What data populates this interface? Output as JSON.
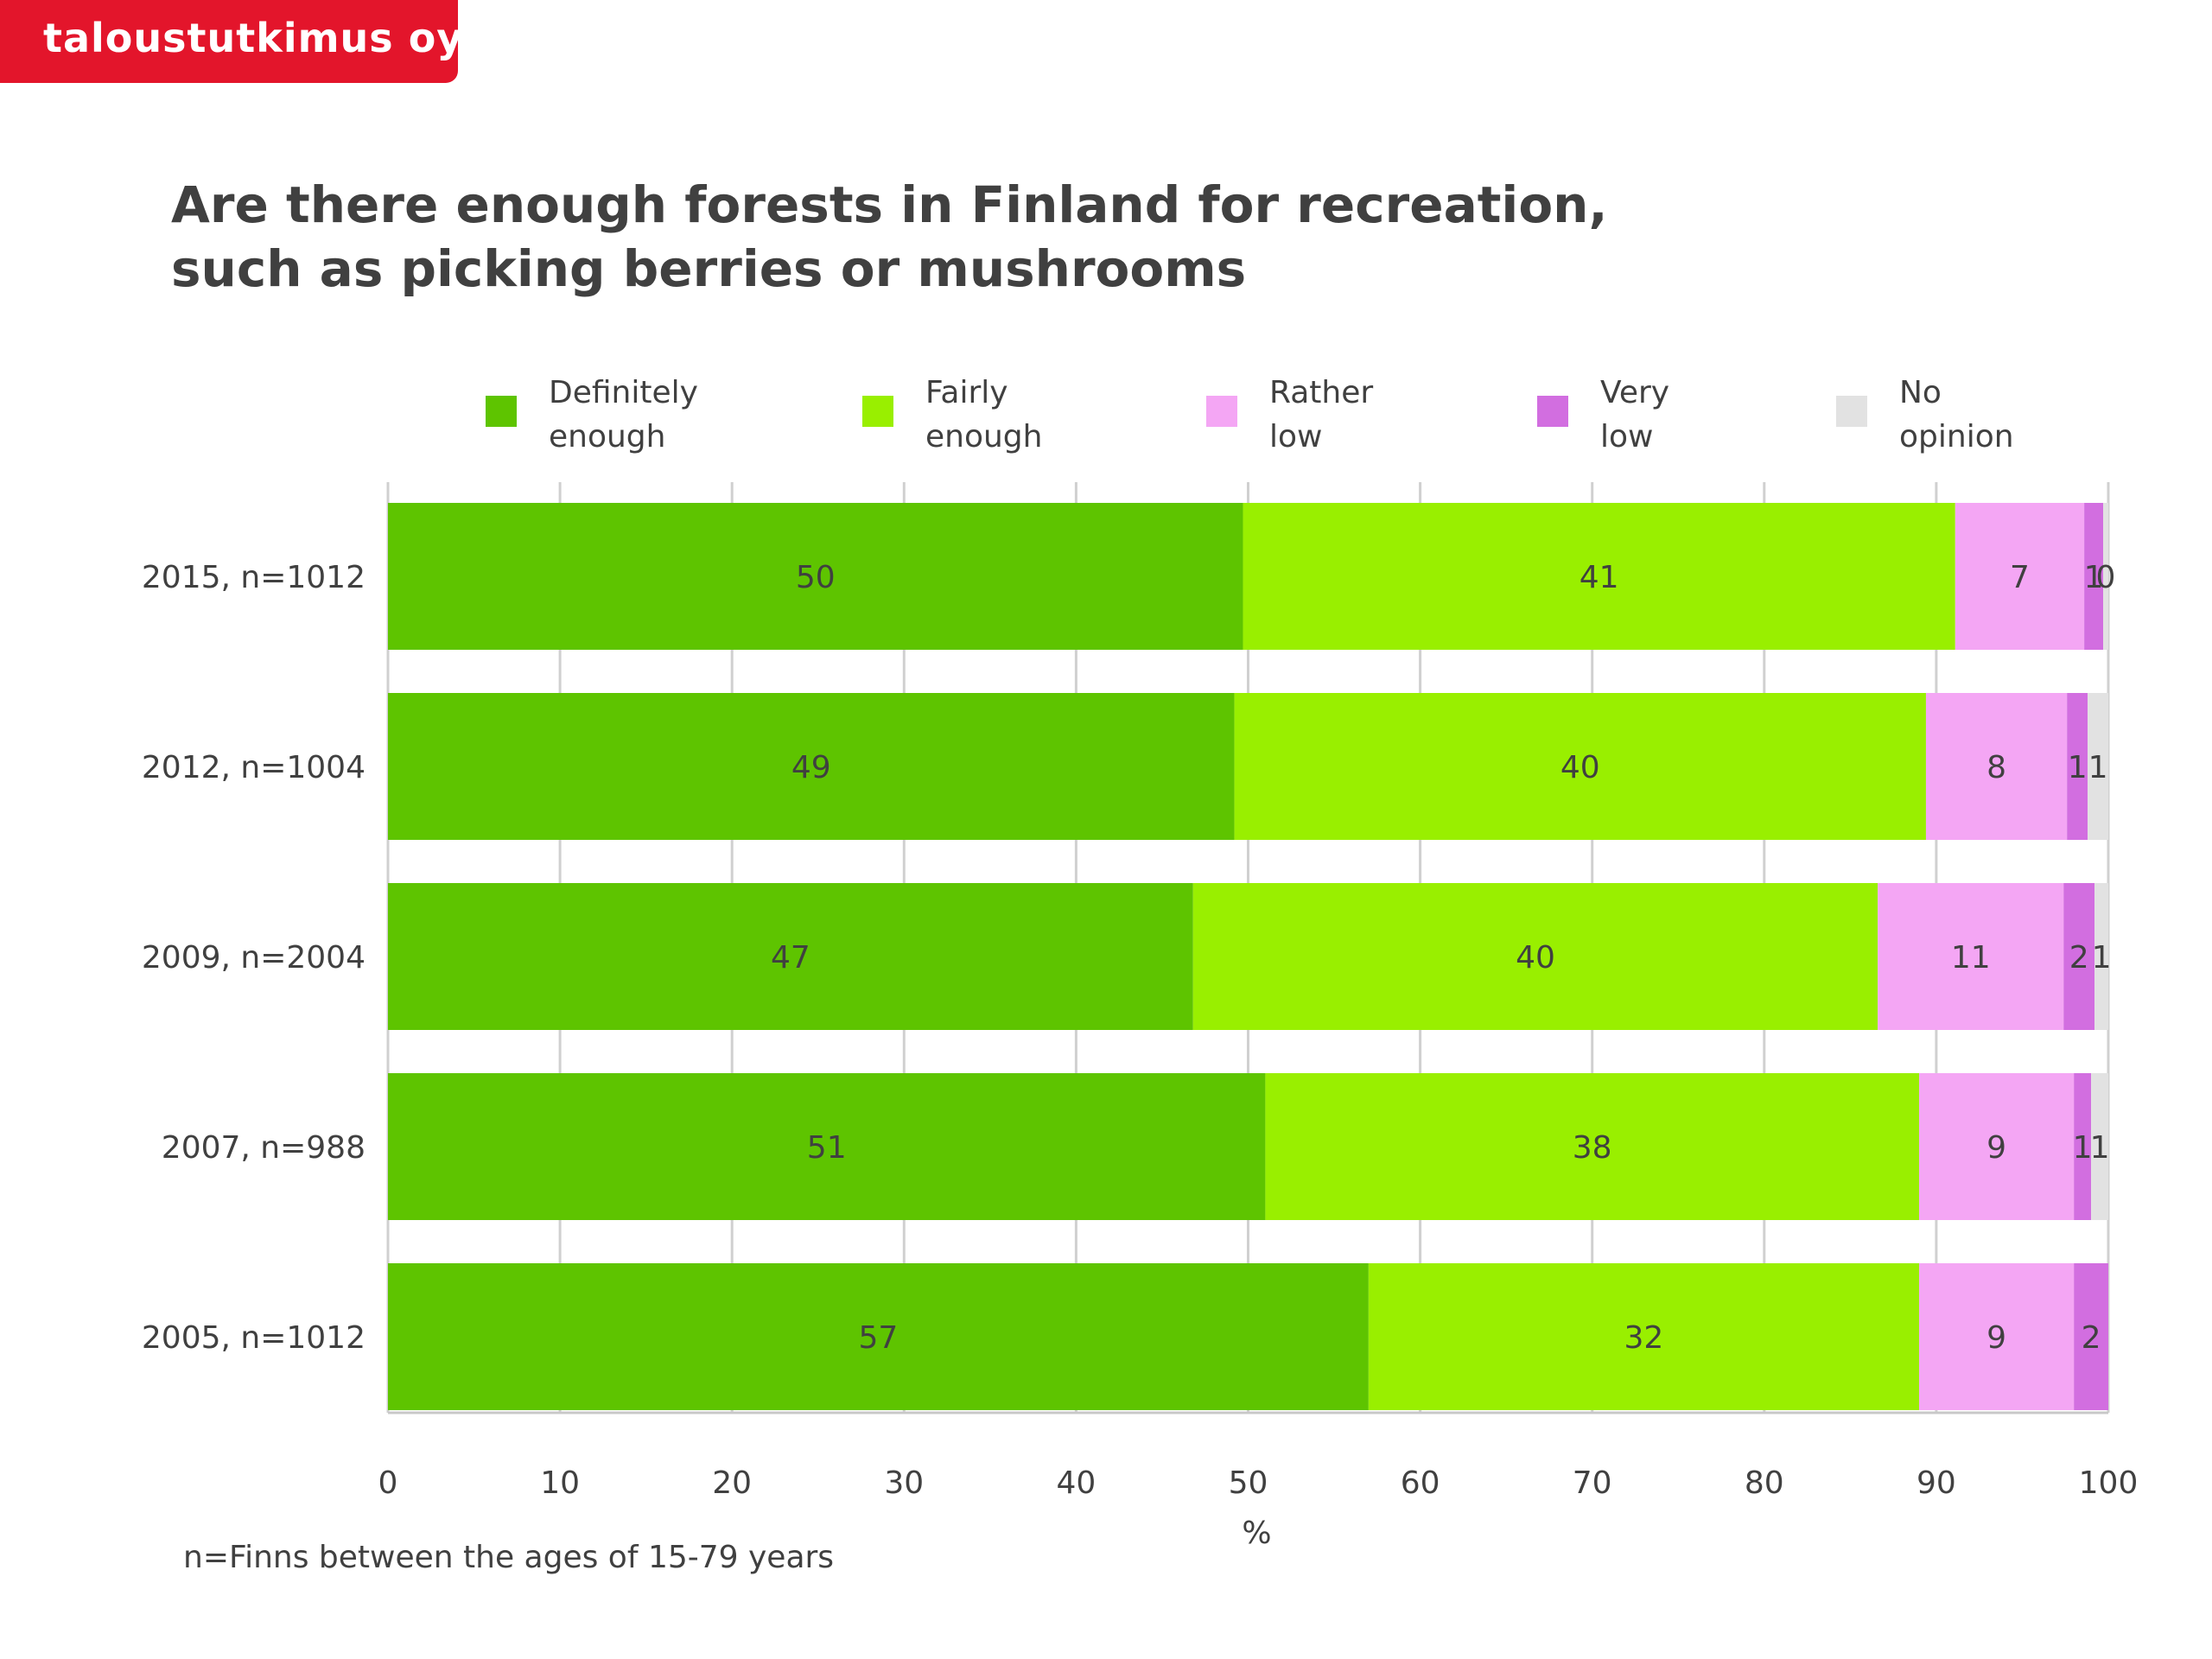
{
  "brand": {
    "name": "taloustutkimus oy",
    "color": "#e3152b"
  },
  "title_lines": [
    "Are there enough forests in Finland for recreation,",
    "such as picking berries or mushrooms"
  ],
  "footnote": "n=Finns between the ages of 15-79 years",
  "chart_data": {
    "type": "bar",
    "orientation": "horizontal",
    "stacked": true,
    "title": "Are there enough forests in Finland for recreation, such as picking berries or mushrooms",
    "xlabel": "%",
    "xlim": [
      0,
      100
    ],
    "x_ticks": [
      "0",
      "10",
      "20",
      "30",
      "40",
      "50",
      "60",
      "70",
      "80",
      "90",
      "100"
    ],
    "grid": "vertical",
    "legend_position": "top",
    "categories": [
      "2015, n=1012",
      "2012, n=1004",
      "2009, n=2004",
      "2007, n=988",
      "2005, n=1012"
    ],
    "series": [
      {
        "name": "Definitely enough",
        "legend_lines": [
          "Definitely",
          "enough"
        ],
        "color": "#5ec400",
        "values": [
          49.7,
          49.2,
          46.8,
          51.0,
          57.0
        ],
        "labels": [
          "50",
          "49",
          "47",
          "51",
          "57"
        ]
      },
      {
        "name": "Fairly enough",
        "legend_lines": [
          "Fairly",
          "enough"
        ],
        "color": "#99ef00",
        "values": [
          41.4,
          40.2,
          39.8,
          38.0,
          32.0
        ],
        "labels": [
          "41",
          "40",
          "40",
          "38",
          "32"
        ]
      },
      {
        "name": "Rather low",
        "legend_lines": [
          "Rather",
          "low"
        ],
        "color": "#f4a6f4",
        "values": [
          7.5,
          8.2,
          10.8,
          9.0,
          9.0
        ],
        "labels": [
          "7",
          "8",
          "11",
          "9",
          "9"
        ]
      },
      {
        "name": "Very low",
        "legend_lines": [
          "Very",
          "low"
        ],
        "color": "#d26ee0",
        "values": [
          1.1,
          1.2,
          1.8,
          1.0,
          2.0
        ],
        "labels": [
          "1",
          "1",
          "2",
          "1",
          "2"
        ]
      },
      {
        "name": "No opinion",
        "legend_lines": [
          "No",
          "opinion"
        ],
        "color": "#e2e2e2",
        "values": [
          0.3,
          1.2,
          0.8,
          1.0,
          0.0
        ],
        "labels": [
          "0",
          "1",
          "1",
          "1",
          ""
        ]
      }
    ]
  }
}
